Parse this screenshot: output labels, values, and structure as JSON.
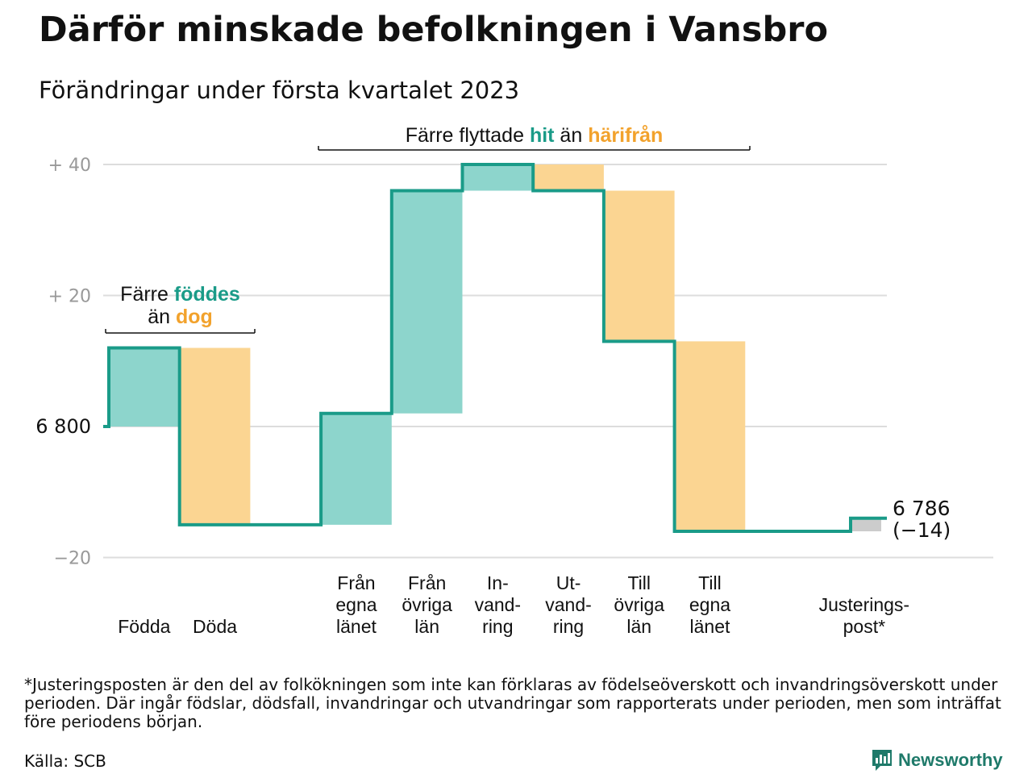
{
  "header": {
    "title": "Därför minskade befolkningen i Vansbro",
    "subtitle": "Förändringar under första kvartalet 2023"
  },
  "colors": {
    "teal": "#1a9b88",
    "teal_fill": "#8dd5cc",
    "orange": "#f2a22c",
    "orange_fill": "#fbd592",
    "gray_fill": "#cccccc",
    "grid": "#dddddd"
  },
  "annotations": {
    "births": {
      "prefix": "Färre ",
      "hl1": "föddes",
      "mid": "än ",
      "hl2": "dog"
    },
    "moves": {
      "prefix": "Färre flyttade ",
      "hl1": "hit",
      "mid": " än ",
      "hl2": "härifrån"
    }
  },
  "chart_data": {
    "type": "waterfall",
    "start_value": 6800,
    "start_label": "6 800",
    "end_value": 6786,
    "end_label": "6 786",
    "end_change_label": "(−14)",
    "ylim": [
      -20,
      40
    ],
    "yticks": [
      {
        "value": 40,
        "label": "+ 40"
      },
      {
        "value": 20,
        "label": "+ 20"
      },
      {
        "value": 0,
        "label": "6 800"
      },
      {
        "value": -20,
        "label": "−20"
      }
    ],
    "steps": [
      {
        "lines": [
          "Födda"
        ],
        "value": 12,
        "kind": "in"
      },
      {
        "lines": [
          "Döda"
        ],
        "value": -27,
        "kind": "out"
      },
      {
        "lines": [
          ""
        ],
        "value": 0,
        "kind": "gap"
      },
      {
        "lines": [
          "Från",
          "egna",
          "länet"
        ],
        "value": 17,
        "kind": "in"
      },
      {
        "lines": [
          "Från",
          "övriga",
          "län"
        ],
        "value": 34,
        "kind": "in"
      },
      {
        "lines": [
          "In-",
          "vand-",
          "ring"
        ],
        "value": 4,
        "kind": "in"
      },
      {
        "lines": [
          "Ut-",
          "vand-",
          "ring"
        ],
        "value": -4,
        "kind": "out"
      },
      {
        "lines": [
          "Till",
          "övriga",
          "län"
        ],
        "value": -23,
        "kind": "out"
      },
      {
        "lines": [
          "Till",
          "egna",
          "länet"
        ],
        "value": -29,
        "kind": "out"
      },
      {
        "lines": [
          ""
        ],
        "value": 0,
        "kind": "gap"
      },
      {
        "lines": [
          "Justerings-",
          "post*"
        ],
        "value": 2,
        "kind": "adjust"
      }
    ]
  },
  "footer": {
    "footnote": "*Justeringsposten är den del av folkökningen som inte kan förklaras av födelseöverskott och invandringsöverskott under perioden. Där ingår födslar, dödsfall, invandringar och utvandringar som rapporterats under perioden, men som inträffat före periodens början.",
    "source": "Källa: SCB",
    "brand": "Newsworthy"
  }
}
